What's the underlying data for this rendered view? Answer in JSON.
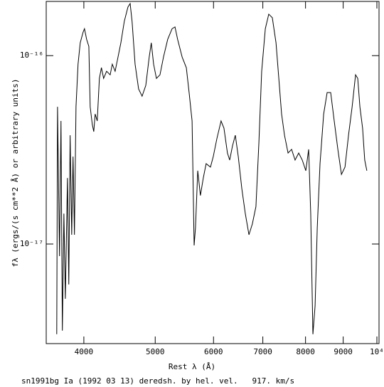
{
  "chart_data": {
    "type": "line",
    "x_label": "Rest λ (Å)",
    "y_label": "fλ (ergs/(s cm**2 Å) or arbitrary units)",
    "caption": "sn1991bg Ia (1992 03 13) deredsh. by hel. vel.   917. km/s",
    "xscale": "log",
    "yscale": "log",
    "xlim": [
      3556,
      10067
    ],
    "ylim": [
      2.96e-18,
      1.94e-16
    ],
    "xticks": [
      4000,
      5000,
      6000,
      7000,
      8000,
      9000,
      {
        "value": 10000,
        "label": "10⁴"
      }
    ],
    "yticks": [
      {
        "value": 1e-17,
        "label": "10⁻¹⁷"
      },
      {
        "value": 1e-16,
        "label": "10⁻¹⁶"
      }
    ],
    "color": "#000000",
    "x": [
      3675,
      3684,
      3707,
      3724,
      3740,
      3758,
      3775,
      3800,
      3816,
      3832,
      3851,
      3867,
      3884,
      3903,
      3928,
      3955,
      3990,
      4008,
      4035,
      4063,
      4080,
      4107,
      4126,
      4144,
      4171,
      4199,
      4226,
      4255,
      4295,
      4343,
      4372,
      4411,
      4451,
      4491,
      4539,
      4591,
      4623,
      4651,
      4695,
      4747,
      4799,
      4855,
      4907,
      4939,
      4975,
      5019,
      5075,
      5131,
      5199,
      5271,
      5319,
      5363,
      5439,
      5511,
      5559,
      5611,
      5647,
      5671,
      5711,
      5759,
      5811,
      5863,
      5943,
      5995,
      6063,
      6143,
      6199,
      6267,
      6311,
      6367,
      6423,
      6483,
      6555,
      6627,
      6703,
      6775,
      6851,
      6915,
      6975,
      7055,
      7131,
      7211,
      7295,
      7359,
      7423,
      7491,
      7575,
      7659,
      7743,
      7831,
      7919,
      8007,
      8079,
      8131,
      8187,
      8243,
      8299,
      8371,
      8467,
      8559,
      8655,
      8751,
      8851,
      8951,
      9051,
      9151,
      9255,
      9355,
      9419,
      9483,
      9563,
      9627,
      9691
    ],
    "values": [
      3.32e-18,
      5.35e-17,
      8.63e-18,
      4.5e-17,
      3.47e-18,
      1.45e-17,
      5.12e-18,
      2.24e-17,
      6.1e-18,
      3.78e-17,
      1.12e-17,
      2.91e-17,
      1.12e-17,
      5.35e-17,
      9.01e-17,
      1.17e-16,
      1.33e-16,
      1.39e-16,
      1.22e-16,
      1.12e-16,
      5.35e-17,
      4.31e-17,
      3.95e-17,
      4.9e-17,
      4.5e-17,
      7.57e-17,
      8.63e-17,
      7.57e-17,
      8.26e-17,
      7.91e-17,
      9.01e-17,
      8.26e-17,
      9.83e-17,
      1.17e-16,
      1.52e-16,
      1.81e-16,
      1.89e-16,
      1.52e-16,
      9.01e-17,
      6.65e-17,
      6.09e-17,
      6.95e-17,
      9.83e-17,
      1.17e-16,
      9.01e-17,
      7.57e-17,
      7.91e-17,
      9.83e-17,
      1.22e-16,
      1.39e-16,
      1.42e-16,
      1.22e-16,
      9.83e-17,
      8.63e-17,
      6.37e-17,
      4.5e-17,
      9.83e-18,
      1.22e-17,
      2.45e-17,
      1.81e-17,
      2.24e-17,
      2.67e-17,
      2.56e-17,
      2.91e-17,
      3.62e-17,
      4.5e-17,
      4.12e-17,
      3.04e-17,
      2.79e-17,
      3.32e-17,
      3.78e-17,
      2.91e-17,
      1.97e-17,
      1.45e-17,
      1.12e-17,
      1.28e-17,
      1.58e-17,
      3.47e-17,
      8.26e-17,
      1.39e-16,
      1.66e-16,
      1.59e-16,
      1.17e-16,
      7.57e-17,
      4.9e-17,
      3.78e-17,
      3.04e-17,
      3.18e-17,
      2.79e-17,
      3.04e-17,
      2.79e-17,
      2.45e-17,
      3.18e-17,
      1.45e-17,
      3.32e-18,
      4.7e-18,
      1.22e-17,
      2.67e-17,
      4.9e-17,
      6.37e-17,
      6.37e-17,
      4.5e-17,
      3.18e-17,
      2.34e-17,
      2.56e-17,
      3.78e-17,
      5.35e-17,
      7.91e-17,
      7.57e-17,
      5.35e-17,
      4.12e-17,
      2.79e-17,
      2.45e-17
    ]
  }
}
